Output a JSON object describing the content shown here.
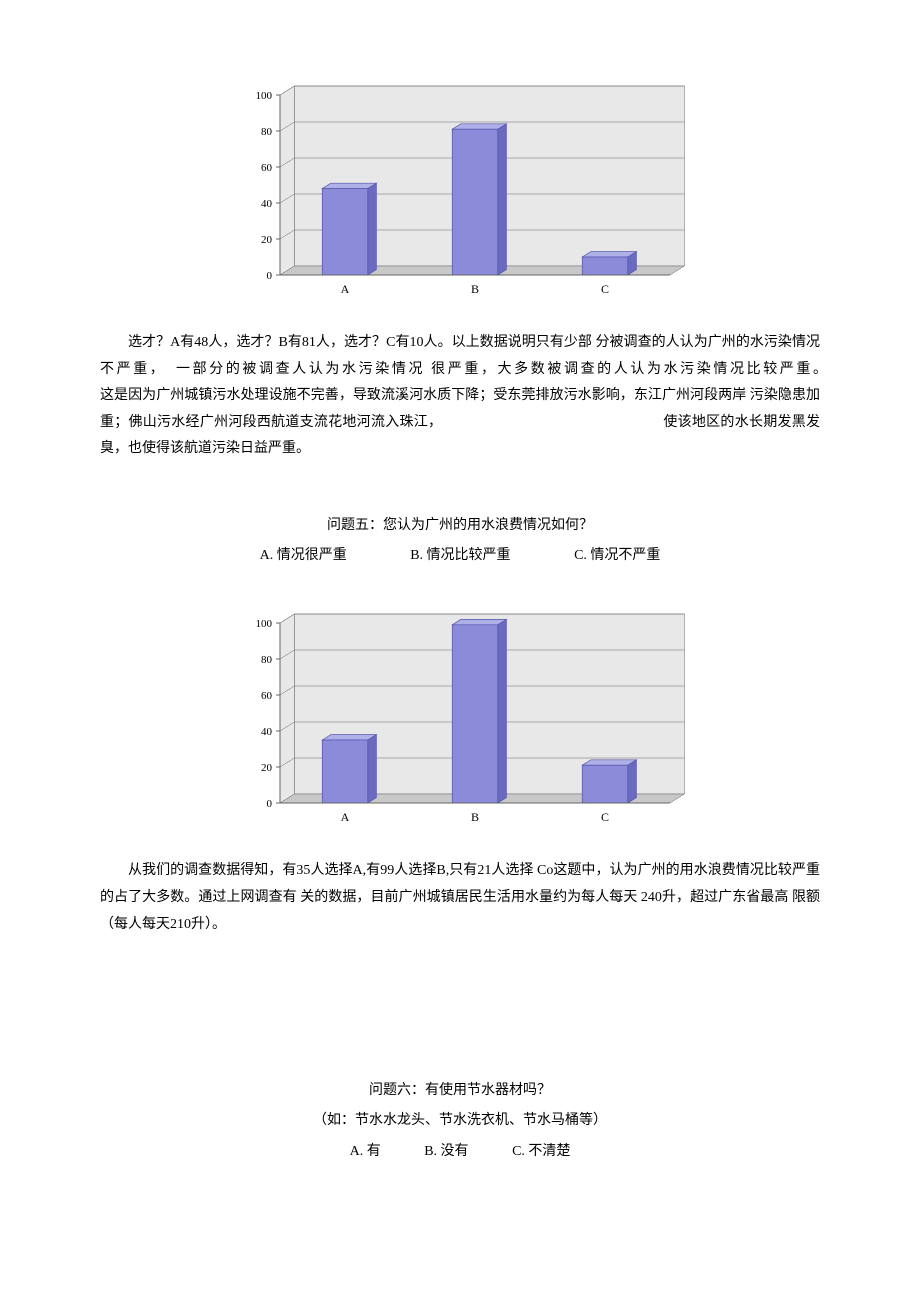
{
  "chart1": {
    "type": "bar",
    "categories": [
      "A",
      "B",
      "C"
    ],
    "values": [
      48,
      81,
      10
    ],
    "ylim": [
      0,
      100
    ],
    "ytick_step": 20,
    "bar_fill": "#8b8bd9",
    "bar_stroke": "#5555aa",
    "background_fill": "#e8e8e8",
    "floor_fill": "#c8c8c8",
    "axis_color": "#666666",
    "tick_fontsize": 11,
    "label_fontsize": 12
  },
  "paragraph1": "选才？A有48人，选才？B有81人，选才？C有10人。以上数据说明只有少部 分被调查的人认为广州的水污染情况不严重，　一部分的被调查人认为水污染情况 很严重，大多数被调查的人认为水污染情况比较严重。　　　　　　　　　　　　　　　　　　这是因为广州城镇污水处理设施不完善，导致流溪河水质下降；受东莞排放污水影响，东江广州河段两岸 污染隐患加重；佛山污水经广州河段西航道支流花地河流入珠江，　　　　　　　　　　　　　　　　使该地区的水长期发黑发臭，也使得该航道污染日益严重。",
  "question5": {
    "title": "问题五：您认为广州的用水浪费情况如何？",
    "options": {
      "a": "A. 情况很严重",
      "b": "B. 情况比较严重",
      "c": "C. 情况不严重"
    }
  },
  "chart2": {
    "type": "bar",
    "categories": [
      "A",
      "B",
      "C"
    ],
    "values": [
      35,
      99,
      21
    ],
    "ylim": [
      0,
      100
    ],
    "ytick_step": 20,
    "bar_fill": "#8b8bd9",
    "bar_stroke": "#5555aa",
    "background_fill": "#e8e8e8",
    "floor_fill": "#c8c8c8",
    "axis_color": "#666666",
    "tick_fontsize": 11,
    "label_fontsize": 12
  },
  "paragraph2": "从我们的调查数据得知，有35人选择A,有99人选择B,只有21人选择 Co这题中，认为广州的用水浪费情况比较严重的占了大多数。通过上网调查有 关的数据，目前广州城镇居民生活用水量约为每人每天 240升，超过广东省最高 限额（每人每天210升）。",
  "question6": {
    "title": "问题六：有使用节水器材吗？",
    "subtitle": "（如：节水水龙头、节水洗衣机、节水马桶等）",
    "options": {
      "a": "A. 有",
      "b": "B. 没有",
      "c": "C. 不清楚"
    }
  }
}
